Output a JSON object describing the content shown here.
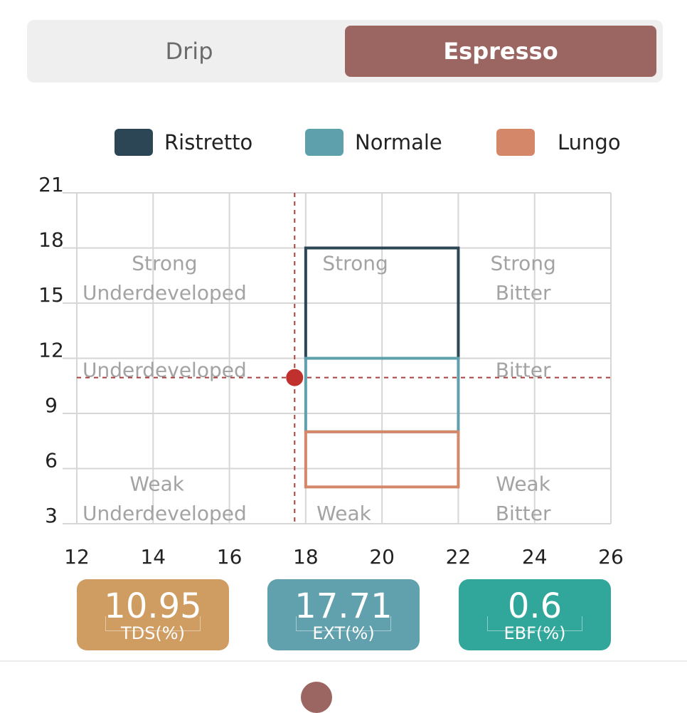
{
  "tabs": {
    "drip": "Drip",
    "espresso": "Espresso"
  },
  "legend": [
    {
      "label": "Ristretto",
      "color": "#2d4656"
    },
    {
      "label": "Normale",
      "color": "#5fa0ad"
    },
    {
      "label": "Lungo",
      "color": "#d5876a"
    }
  ],
  "chart_data": {
    "type": "scatter",
    "xlim": [
      12,
      26
    ],
    "ylim": [
      3,
      21
    ],
    "xticks": [
      12,
      14,
      16,
      18,
      20,
      22,
      24,
      26
    ],
    "yticks": [
      3,
      6,
      9,
      12,
      15,
      18,
      21
    ],
    "grid": true,
    "ranges": [
      {
        "name": "Ristretto",
        "x": [
          18,
          22
        ],
        "y": [
          12,
          18
        ],
        "color": "#2d4656"
      },
      {
        "name": "Normale",
        "x": [
          18,
          22
        ],
        "y": [
          8,
          12
        ],
        "color": "#5fa0ad"
      },
      {
        "name": "Lungo",
        "x": [
          18,
          22
        ],
        "y": [
          5,
          8
        ],
        "color": "#d5876a"
      }
    ],
    "point": {
      "x": 17.71,
      "y": 10.95,
      "color": "#c0312e"
    },
    "zone_labels": [
      {
        "text": "Strong",
        "x": 14.3,
        "y": 16.8
      },
      {
        "text": "Underdeveloped",
        "x": 14.3,
        "y": 15.2
      },
      {
        "text": "Strong",
        "x": 19.3,
        "y": 16.8
      },
      {
        "text": "Strong",
        "x": 23.7,
        "y": 16.8
      },
      {
        "text": "Bitter",
        "x": 23.7,
        "y": 15.2
      },
      {
        "text": "Underdeveloped",
        "x": 14.3,
        "y": 11.0
      },
      {
        "text": "Bitter",
        "x": 23.7,
        "y": 11.0
      },
      {
        "text": "Weak",
        "x": 14.1,
        "y": 4.8
      },
      {
        "text": "Underdeveloped",
        "x": 14.3,
        "y": 3.2
      },
      {
        "text": "Weak",
        "x": 19.0,
        "y": 3.2
      },
      {
        "text": "Weak",
        "x": 23.7,
        "y": 4.8
      },
      {
        "text": "Bitter",
        "x": 23.7,
        "y": 3.2
      }
    ]
  },
  "metrics": [
    {
      "value": "10.95",
      "label": "TDS(%)",
      "color": "#cf9c62"
    },
    {
      "value": "17.71",
      "label": "EXT(%)",
      "color": "#61a0ad"
    },
    {
      "value": "0.6",
      "label": "EBF(%)",
      "color": "#31a79b"
    }
  ]
}
